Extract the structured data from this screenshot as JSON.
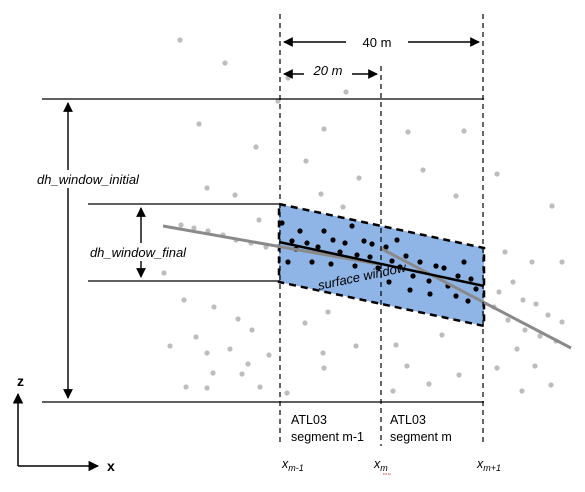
{
  "labels": {
    "width_40": "40 m",
    "width_20": "20 m",
    "dh_initial": "dh_window_initial",
    "dh_final": "dh_window_final",
    "surface_window": "surface window",
    "seg_left_line1": "ATL03",
    "seg_left_line2": "segment m-1",
    "seg_right_line1": "ATL03",
    "seg_right_line2": "segment m",
    "x_m_minus_1": {
      "base": "x",
      "sub": "m-1"
    },
    "x_m": {
      "base": "x",
      "sub": "m"
    },
    "x_m_plus_1": {
      "base": "x",
      "sub": "m+1"
    },
    "axis_z": "z",
    "axis_x": "x"
  },
  "colors": {
    "window_fill": "#8fb4e6",
    "signal_photon": "#000000",
    "background_photon": "#bdbdbd",
    "surface_fit_line": "#8a8a8a",
    "window_center_line": "#000000"
  }
}
